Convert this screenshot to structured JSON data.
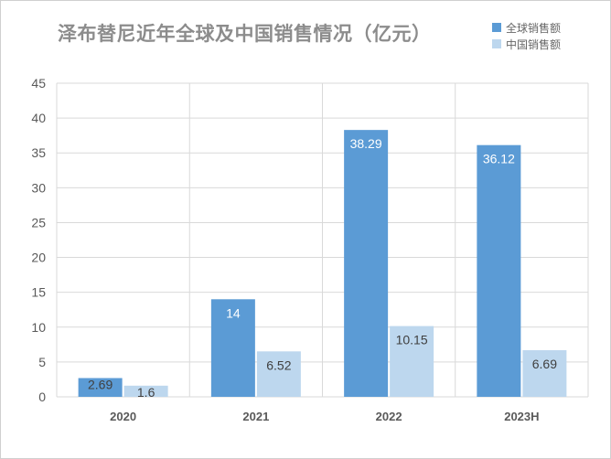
{
  "chart_data": {
    "type": "bar",
    "title": "泽布替尼近年全球及中国销售情况（亿元）",
    "categories": [
      "2020",
      "2021",
      "2022",
      "2023H"
    ],
    "series": [
      {
        "name": "全球销售额",
        "values": [
          2.69,
          14,
          38.29,
          36.12
        ],
        "color": "#5b9bd5"
      },
      {
        "name": "中国销售额",
        "values": [
          1.6,
          6.52,
          10.15,
          6.69
        ],
        "color": "#bdd7ee"
      }
    ],
    "ylim": [
      0,
      45
    ],
    "yticks": [
      0,
      5,
      10,
      15,
      20,
      25,
      30,
      35,
      40,
      45
    ],
    "grid": true,
    "legend_position": "top-right"
  }
}
